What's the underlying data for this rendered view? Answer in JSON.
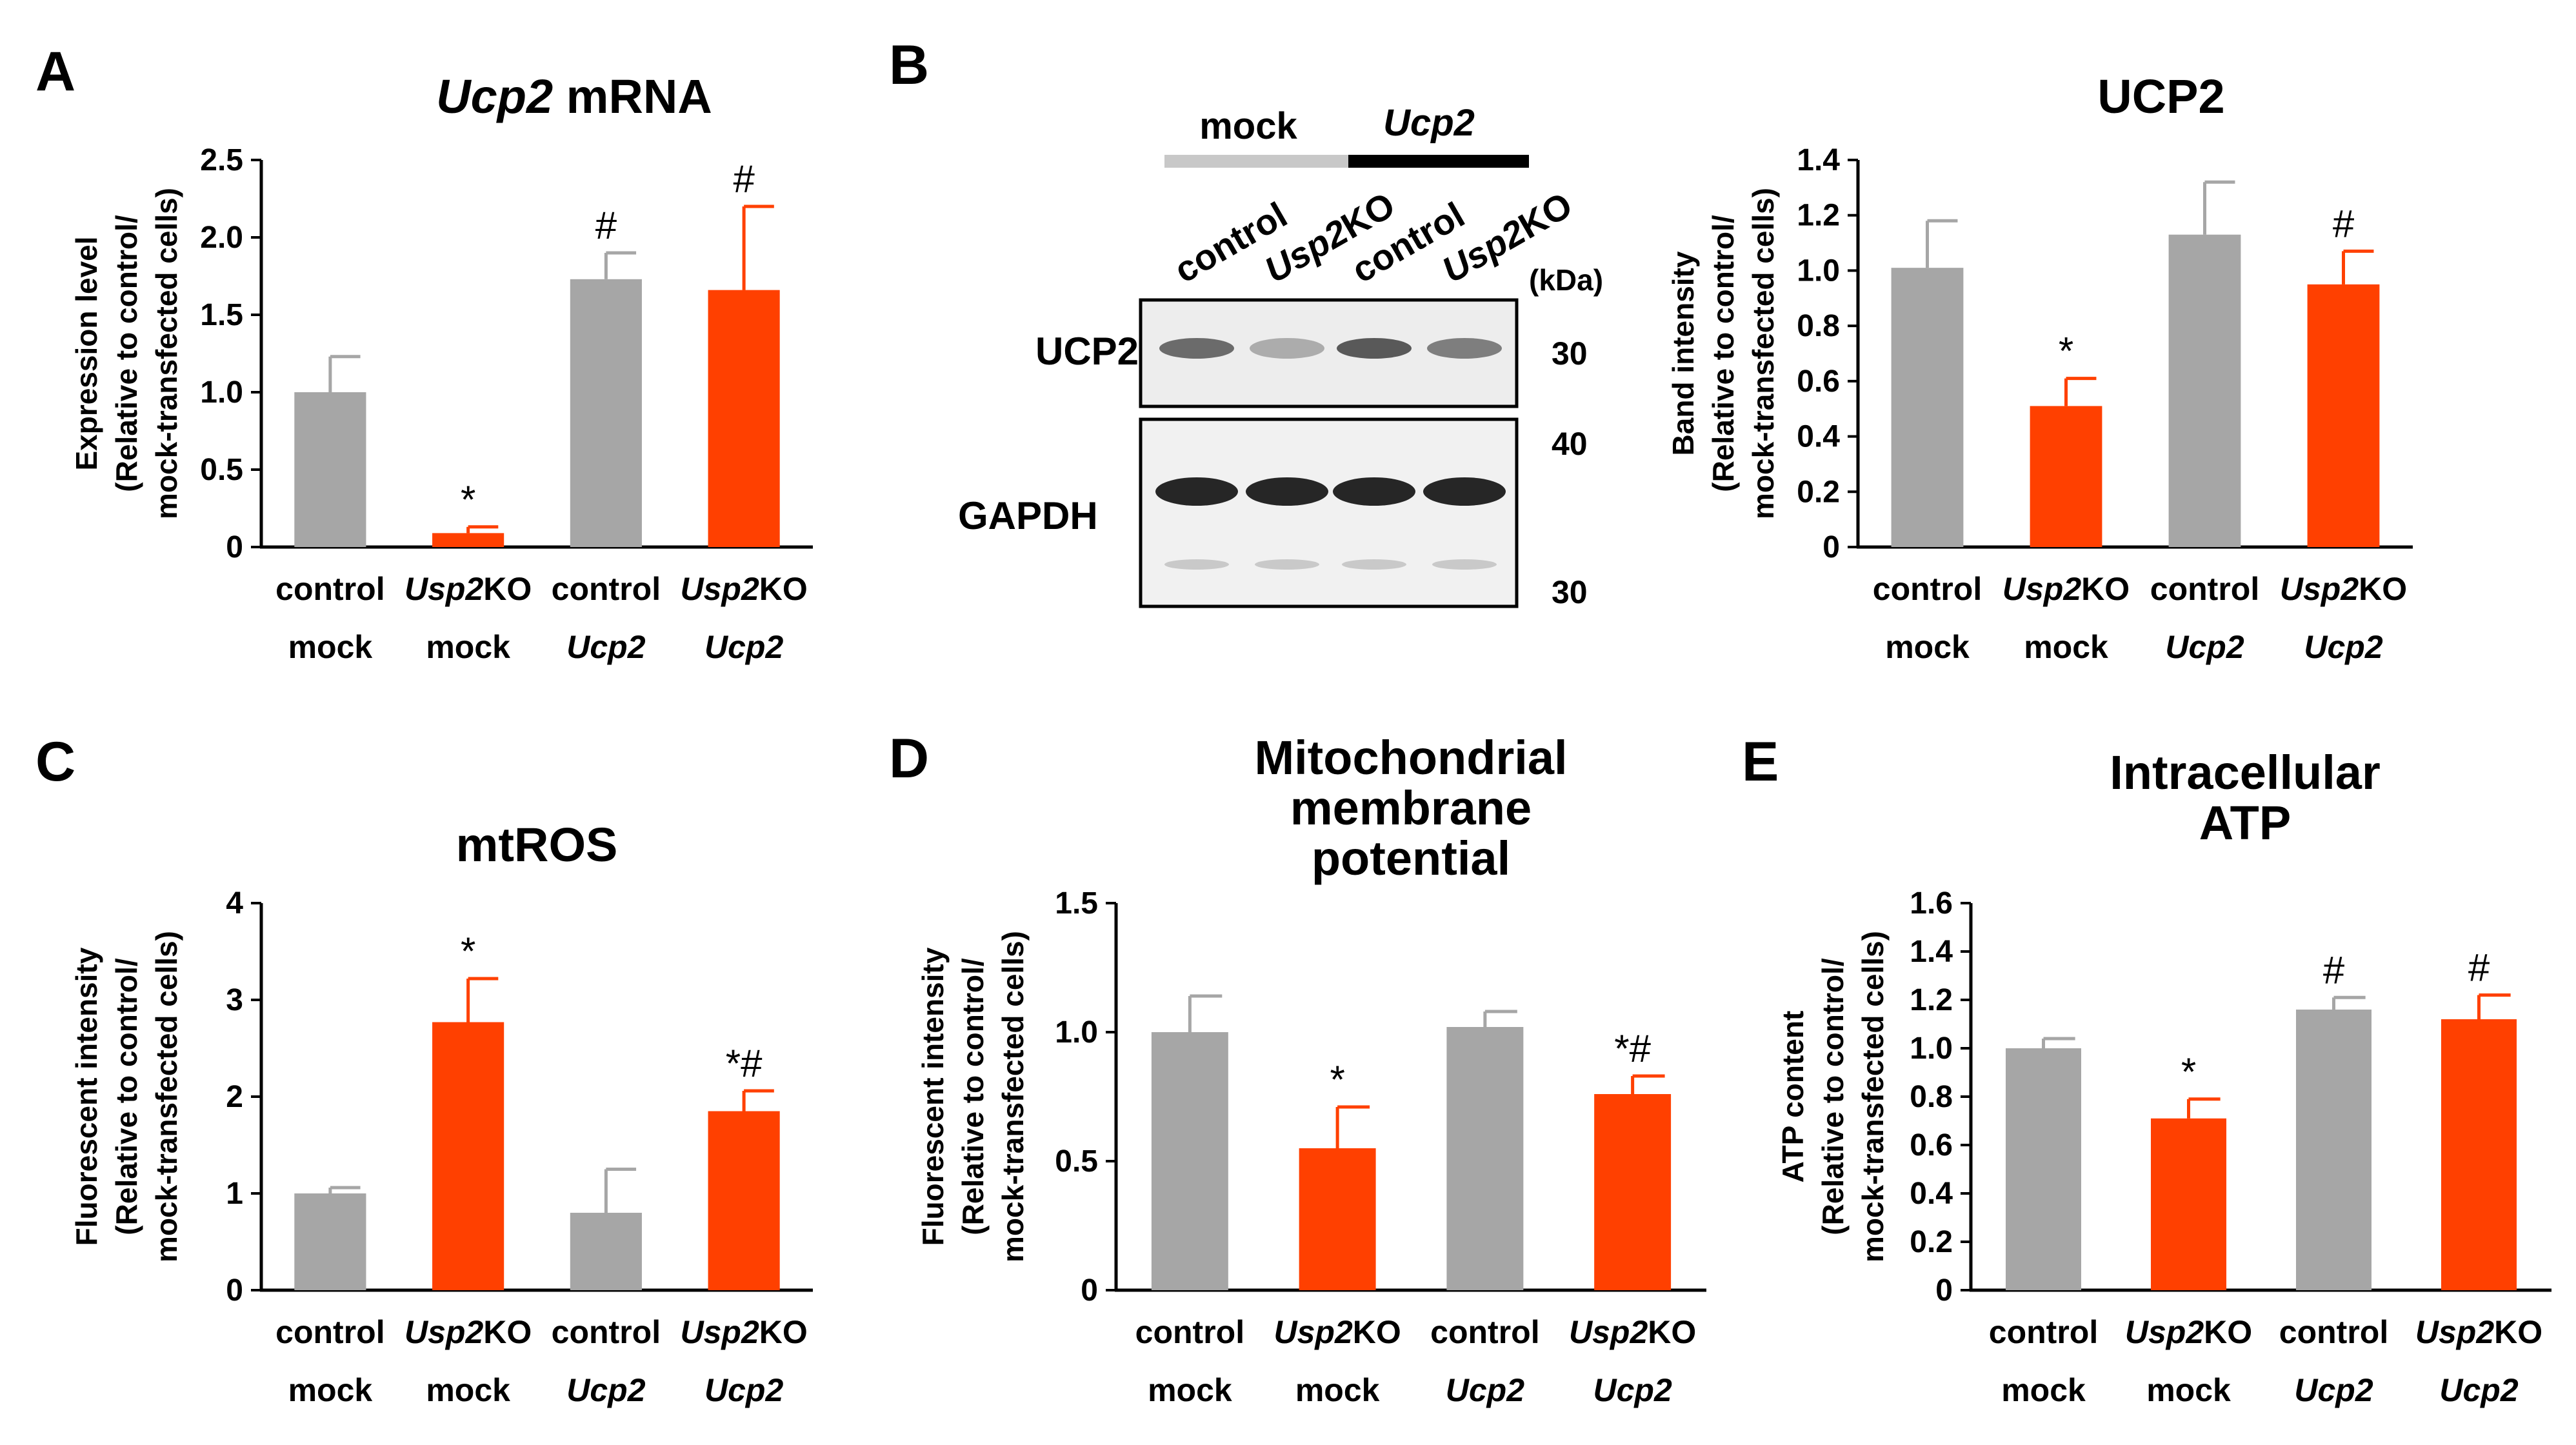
{
  "colors": {
    "mock": "#a6a6a6",
    "usp2ko": "#ff4000",
    "axis": "#000000",
    "mockBar": "#bfbfbf"
  },
  "chart_data": [
    {
      "panel": "A",
      "type": "bar",
      "title_parts": [
        "Ucp2",
        " mRNA"
      ],
      "ylabel_lines": [
        "Expression level",
        "(Relative to control/",
        "mock-transfected cells)"
      ],
      "yticks": [
        "0",
        "0.5",
        "1.0",
        "1.5",
        "2.0",
        "2.5"
      ],
      "ylim": [
        0,
        2.5
      ],
      "categories": [
        {
          "g1": "control",
          "g2": "mock"
        },
        {
          "g1": "Usp2",
          "g1b": "KO",
          "g2": "mock"
        },
        {
          "g1": "control",
          "g2": "Ucp2"
        },
        {
          "g1": "Usp2",
          "g1b": "KO",
          "g2": "Ucp2"
        }
      ],
      "values": [
        1.0,
        0.09,
        1.73,
        1.66
      ],
      "errors": [
        0.23,
        0.04,
        0.17,
        0.54
      ],
      "marks": [
        "",
        "*",
        "#",
        "#"
      ],
      "bar_colors": [
        "#a6a6a6",
        "#ff4000",
        "#a6a6a6",
        "#ff4000"
      ]
    },
    {
      "panel": "B",
      "type": "bar",
      "title_parts": [
        "UCP2",
        ""
      ],
      "ylabel_lines": [
        "Band intensity",
        "(Relative to control/",
        "mock-transfected cells)"
      ],
      "yticks": [
        "0",
        "0.2",
        "0.4",
        "0.6",
        "0.8",
        "1.0",
        "1.2",
        "1.4"
      ],
      "ylim": [
        0,
        1.4
      ],
      "categories": [
        {
          "g1": "control",
          "g2": "mock"
        },
        {
          "g1": "Usp2",
          "g1b": "KO",
          "g2": "mock"
        },
        {
          "g1": "control",
          "g2": "Ucp2"
        },
        {
          "g1": "Usp2",
          "g1b": "KO",
          "g2": "Ucp2"
        }
      ],
      "values": [
        1.01,
        0.51,
        1.13,
        0.95
      ],
      "errors": [
        0.17,
        0.1,
        0.19,
        0.12
      ],
      "marks": [
        "",
        "*",
        "",
        "#"
      ],
      "bar_colors": [
        "#a6a6a6",
        "#ff4000",
        "#a6a6a6",
        "#ff4000"
      ]
    },
    {
      "panel": "C",
      "type": "bar",
      "title_parts": [
        "mtROS",
        ""
      ],
      "ylabel_lines": [
        "Fluorescent intensity",
        "(Relative to control/",
        "mock-transfected cells)"
      ],
      "yticks": [
        "0",
        "1",
        "2",
        "3",
        "4"
      ],
      "ylim": [
        0,
        4
      ],
      "categories": [
        {
          "g1": "control",
          "g2": "mock"
        },
        {
          "g1": "Usp2",
          "g1b": "KO",
          "g2": "mock"
        },
        {
          "g1": "control",
          "g2": "Ucp2"
        },
        {
          "g1": "Usp2",
          "g1b": "KO",
          "g2": "Ucp2"
        }
      ],
      "values": [
        1.0,
        2.77,
        0.8,
        1.85
      ],
      "errors": [
        0.06,
        0.45,
        0.45,
        0.21
      ],
      "marks": [
        "",
        "*",
        "",
        "*#"
      ],
      "bar_colors": [
        "#a6a6a6",
        "#ff4000",
        "#a6a6a6",
        "#ff4000"
      ]
    },
    {
      "panel": "D",
      "type": "bar",
      "title_lines": [
        "Mitochondrial",
        "membrane",
        "potential"
      ],
      "ylabel_lines": [
        "Fluorescent intensity",
        "(Relative to control/",
        "mock-transfected cells)"
      ],
      "yticks": [
        "0",
        "0.5",
        "1.0",
        "1.5"
      ],
      "ylim": [
        0,
        1.5
      ],
      "categories": [
        {
          "g1": "control",
          "g2": "mock"
        },
        {
          "g1": "Usp2",
          "g1b": "KO",
          "g2": "mock"
        },
        {
          "g1": "control",
          "g2": "Ucp2"
        },
        {
          "g1": "Usp2",
          "g1b": "KO",
          "g2": "Ucp2"
        }
      ],
      "values": [
        1.0,
        0.55,
        1.02,
        0.76
      ],
      "errors": [
        0.14,
        0.16,
        0.06,
        0.07
      ],
      "marks": [
        "",
        "*",
        "",
        "*#"
      ],
      "bar_colors": [
        "#a6a6a6",
        "#ff4000",
        "#a6a6a6",
        "#ff4000"
      ]
    },
    {
      "panel": "E",
      "type": "bar",
      "title_lines": [
        "Intracellular",
        "ATP"
      ],
      "ylabel_lines": [
        "ATP content",
        "(Relative to control/",
        "mock-transfected cells)"
      ],
      "yticks": [
        "0",
        "0.2",
        "0.4",
        "0.6",
        "0.8",
        "1.0",
        "1.2",
        "1.4",
        "1.6"
      ],
      "ylim": [
        0,
        1.6
      ],
      "categories": [
        {
          "g1": "control",
          "g2": "mock"
        },
        {
          "g1": "Usp2",
          "g1b": "KO",
          "g2": "mock"
        },
        {
          "g1": "control",
          "g2": "Ucp2"
        },
        {
          "g1": "Usp2",
          "g1b": "KO",
          "g2": "Ucp2"
        }
      ],
      "values": [
        1.0,
        0.71,
        1.16,
        1.12
      ],
      "errors": [
        0.04,
        0.08,
        0.05,
        0.1
      ],
      "marks": [
        "",
        "*",
        "#",
        "#"
      ],
      "bar_colors": [
        "#a6a6a6",
        "#ff4000",
        "#a6a6a6",
        "#ff4000"
      ]
    }
  ],
  "blot": {
    "groups": [
      "mock",
      "Ucp2"
    ],
    "lanes": [
      {
        "a": "control",
        "b": ""
      },
      {
        "a": "Usp2",
        "b": "KO"
      },
      {
        "a": "control",
        "b": ""
      },
      {
        "a": "Usp2",
        "b": "KO"
      }
    ],
    "unit": "(kDa)",
    "rows": [
      "UCP2",
      "GAPDH"
    ],
    "markers": [
      "30",
      "40",
      "30"
    ]
  }
}
